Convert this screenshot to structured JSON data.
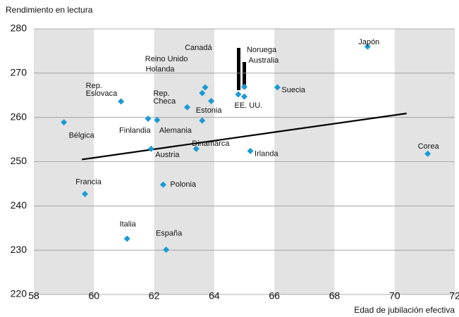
{
  "chart_data": {
    "type": "scatter",
    "y_label": "Rendimiento en lectura",
    "x_label": "Edad de jubilación efectiva",
    "color": "#1b9ad6",
    "xlim": [
      58,
      72
    ],
    "xticks": [
      58,
      60,
      62,
      64,
      66,
      68,
      70,
      72
    ],
    "ylim": [
      220,
      280
    ],
    "yticks": [
      220,
      230,
      240,
      250,
      260,
      270,
      280
    ],
    "grid": true,
    "points": [
      {
        "label": "Bélgica",
        "x": 59.0,
        "y": 258.9
      },
      {
        "label": "Francia",
        "x": 59.7,
        "y": 242.7
      },
      {
        "label": "Italia",
        "x": 61.1,
        "y": 232.6
      },
      {
        "label": "España",
        "x": 62.4,
        "y": 230.1
      },
      {
        "label": "Polonia",
        "x": 62.3,
        "y": 244.8
      },
      {
        "label": "Austria",
        "x": 61.9,
        "y": 252.9
      },
      {
        "label": "Finlandia",
        "x": 61.8,
        "y": 259.7
      },
      {
        "label": "Alemania",
        "x": 62.1,
        "y": 259.4
      },
      {
        "label": [
          "Rep.",
          "Eslovaca"
        ],
        "x": 60.9,
        "y": 263.6
      },
      {
        "label": [
          "Rep.",
          "Checa"
        ],
        "x": 63.1,
        "y": 262.3
      },
      {
        "label": "Estonia",
        "x": 63.6,
        "y": 259.3
      },
      {
        "label": "Dinamarca",
        "x": 63.4,
        "y": 252.9
      },
      {
        "label": "Irlanda",
        "x": 65.2,
        "y": 252.4
      },
      {
        "label": "Reino Unido",
        "x": 63.6,
        "y": 265.5
      },
      {
        "label": "Canadá",
        "x": 63.7,
        "y": 266.8
      },
      {
        "label": "Holanda",
        "x": 63.9,
        "y": 263.7
      },
      {
        "label": "Noruega",
        "x": 64.8,
        "y": 265.2
      },
      {
        "label": "Australia",
        "x": 65.0,
        "y": 264.7
      },
      {
        "label": "EE. UU.",
        "x": 65.0,
        "y": 266.9
      },
      {
        "label": "Suecia",
        "x": 66.1,
        "y": 266.8
      },
      {
        "label": "Japón",
        "x": 69.1,
        "y": 276.0
      },
      {
        "label": "Corea",
        "x": 71.1,
        "y": 251.8
      }
    ],
    "trendline": {
      "x": [
        59.6,
        70.4
      ],
      "y": [
        250.5,
        260.9
      ]
    }
  }
}
